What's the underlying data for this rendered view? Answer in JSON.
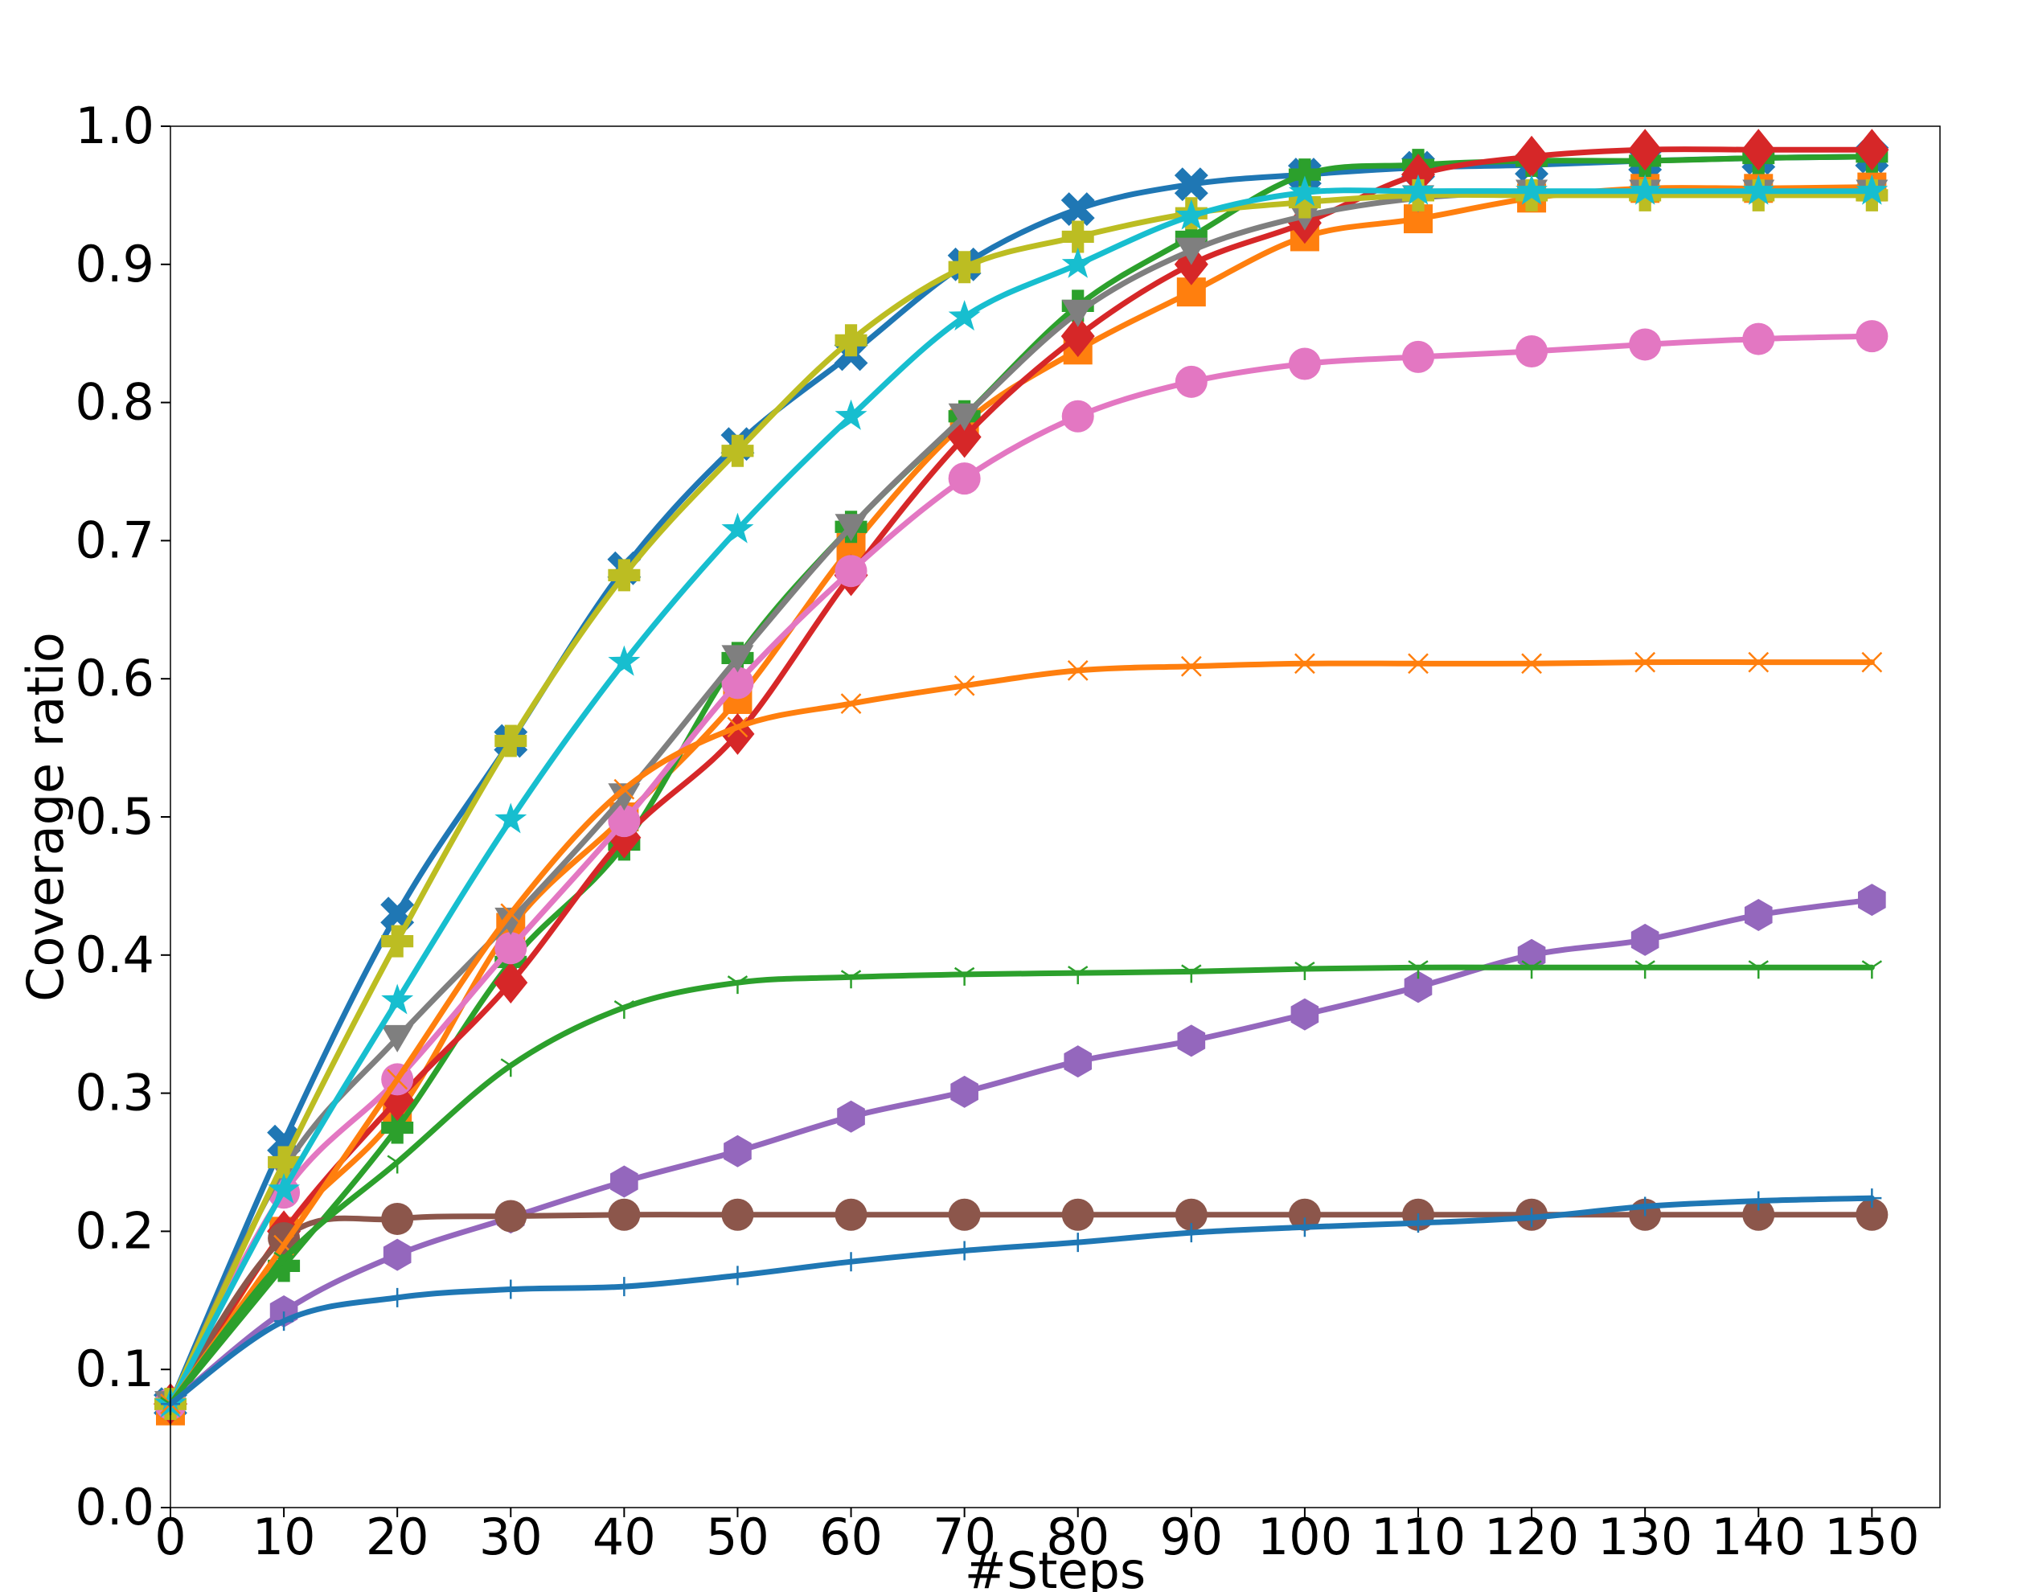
{
  "chart_data": {
    "type": "line",
    "title": "",
    "xlabel": "#Steps",
    "ylabel": "Coverage ratio",
    "xlim": [
      0,
      156
    ],
    "ylim": [
      0,
      1.0
    ],
    "xticks": [
      "0",
      "10",
      "20",
      "30",
      "40",
      "50",
      "60",
      "70",
      "80",
      "90",
      "100",
      "110",
      "120",
      "130",
      "140",
      "150"
    ],
    "yticks": [
      "0.0",
      "0.1",
      "0.2",
      "0.3",
      "0.4",
      "0.5",
      "0.6",
      "0.7",
      "0.8",
      "0.9",
      "1.0"
    ],
    "grid": false,
    "legend": "none",
    "x": [
      0,
      10,
      20,
      30,
      40,
      50,
      60,
      70,
      80,
      90,
      100,
      110,
      120,
      130,
      140,
      150
    ],
    "series": [
      {
        "color": "#1f77b4",
        "marker": "X",
        "values": [
          0.075,
          0.265,
          0.43,
          0.555,
          0.68,
          0.77,
          0.835,
          0.9,
          0.94,
          0.958,
          0.965,
          0.97,
          0.972,
          0.975,
          0.977,
          0.978
        ]
      },
      {
        "color": "#ff7f0e",
        "marker": "s",
        "values": [
          0.07,
          0.2,
          0.285,
          0.42,
          0.5,
          0.585,
          0.695,
          0.785,
          0.838,
          0.88,
          0.92,
          0.933,
          0.948,
          0.955,
          0.955,
          0.956
        ]
      },
      {
        "color": "#2ca02c",
        "marker": "P",
        "values": [
          0.075,
          0.175,
          0.275,
          0.395,
          0.48,
          0.615,
          0.71,
          0.79,
          0.87,
          0.92,
          0.965,
          0.972,
          0.975,
          0.975,
          0.977,
          0.978
        ]
      },
      {
        "color": "#d62728",
        "marker": "D",
        "values": [
          0.075,
          0.2,
          0.295,
          0.38,
          0.485,
          0.56,
          0.675,
          0.775,
          0.848,
          0.9,
          0.93,
          0.965,
          0.978,
          0.983,
          0.983,
          0.983
        ]
      },
      {
        "color": "#9467bd",
        "marker": "H",
        "values": [
          0.075,
          0.142,
          0.183,
          0.21,
          0.236,
          0.258,
          0.283,
          0.301,
          0.323,
          0.338,
          0.357,
          0.377,
          0.4,
          0.411,
          0.429,
          0.44
        ]
      },
      {
        "color": "#8c564b",
        "marker": "o",
        "values": [
          0.075,
          0.195,
          0.209,
          0.211,
          0.212,
          0.212,
          0.212,
          0.212,
          0.212,
          0.212,
          0.212,
          0.212,
          0.212,
          0.212,
          0.212,
          0.212
        ]
      },
      {
        "color": "#e377c2",
        "marker": "o",
        "values": [
          0.075,
          0.228,
          0.31,
          0.405,
          0.497,
          0.597,
          0.678,
          0.745,
          0.79,
          0.815,
          0.828,
          0.833,
          0.837,
          0.842,
          0.846,
          0.848
        ]
      },
      {
        "color": "#7f7f7f",
        "marker": "v",
        "values": [
          0.075,
          0.245,
          0.34,
          0.425,
          0.515,
          0.615,
          0.71,
          0.79,
          0.865,
          0.91,
          0.935,
          0.948,
          0.952,
          0.952,
          0.952,
          0.952
        ]
      },
      {
        "color": "#bcbd22",
        "marker": "P",
        "values": [
          0.075,
          0.25,
          0.41,
          0.555,
          0.675,
          0.765,
          0.845,
          0.898,
          0.92,
          0.937,
          0.945,
          0.95,
          0.95,
          0.95,
          0.95,
          0.95
        ]
      },
      {
        "color": "#17becf",
        "marker": "*",
        "values": [
          0.075,
          0.23,
          0.367,
          0.498,
          0.612,
          0.708,
          0.79,
          0.862,
          0.9,
          0.935,
          0.952,
          0.953,
          0.953,
          0.953,
          0.953,
          0.953
        ]
      },
      {
        "color": "#ff7f0e",
        "marker": "x",
        "values": [
          0.075,
          0.19,
          0.31,
          0.43,
          0.52,
          0.565,
          0.582,
          0.595,
          0.606,
          0.609,
          0.611,
          0.611,
          0.611,
          0.612,
          0.612,
          0.612
        ]
      },
      {
        "color": "#2ca02c",
        "marker": "1",
        "values": [
          0.075,
          0.18,
          0.25,
          0.32,
          0.362,
          0.38,
          0.384,
          0.386,
          0.387,
          0.388,
          0.39,
          0.391,
          0.391,
          0.391,
          0.391,
          0.391
        ]
      },
      {
        "color": "#1f77b4",
        "marker": "+",
        "values": [
          0.075,
          0.135,
          0.152,
          0.158,
          0.16,
          0.168,
          0.178,
          0.186,
          0.192,
          0.199,
          0.203,
          0.206,
          0.21,
          0.218,
          0.222,
          0.224
        ]
      }
    ]
  }
}
